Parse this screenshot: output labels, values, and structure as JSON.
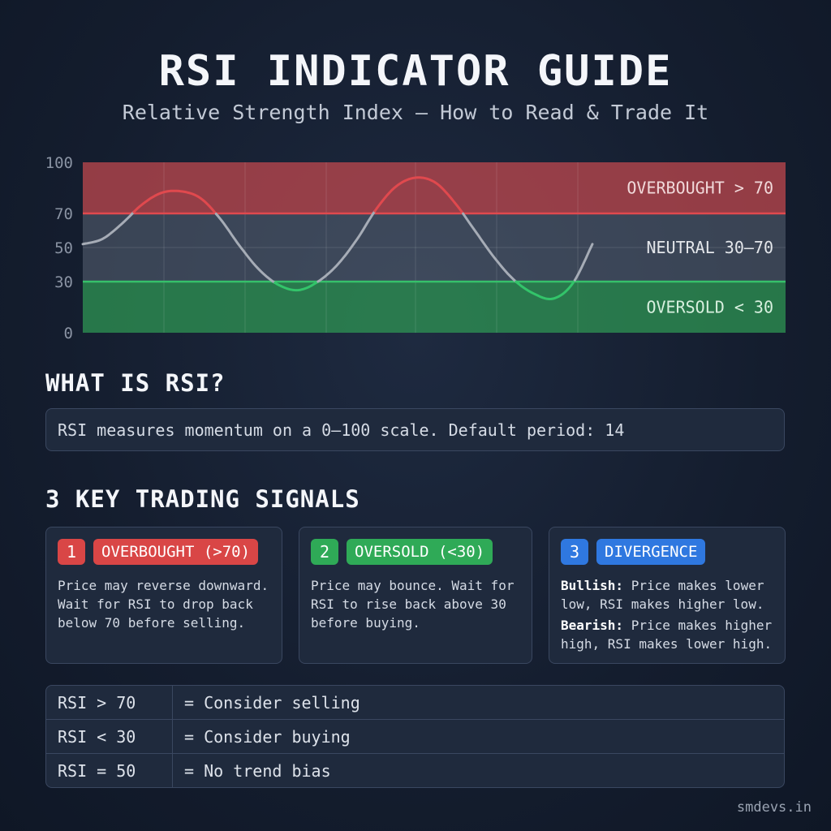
{
  "header": {
    "title": "RSI INDICATOR GUIDE",
    "subtitle": "Relative Strength Index — How to Read & Trade It"
  },
  "chart_data": {
    "type": "line",
    "title": "",
    "xlabel": "",
    "ylabel": "",
    "ylim": [
      0,
      100
    ],
    "y_ticks": [
      100,
      70,
      50,
      30,
      0
    ],
    "grid": true,
    "x": [
      0,
      1,
      2,
      3,
      4,
      5,
      6,
      7,
      8,
      9,
      10,
      11,
      12,
      13,
      14,
      15,
      16,
      17,
      18,
      19,
      20,
      21,
      22,
      23,
      24,
      25,
      26
    ],
    "series": [
      {
        "values": [
          52,
          55,
          64,
          75,
          82,
          83,
          79,
          67,
          51,
          37,
          28,
          25,
          30,
          40,
          55,
          73,
          86,
          91,
          88,
          76,
          60,
          44,
          31,
          23,
          20,
          29,
          52
        ]
      }
    ],
    "zones": [
      {
        "label": "OVERBOUGHT > 70",
        "from": 70,
        "to": 100,
        "color": "#c64a4f"
      },
      {
        "label": "NEUTRAL 30–70",
        "from": 30,
        "to": 70,
        "color": "#5a6474"
      },
      {
        "label": "OVERSOLD < 30",
        "from": 0,
        "to": 30,
        "color": "#2f9a55"
      }
    ],
    "colors": {
      "line_overbought": "#e0494e",
      "line_neutral": "#a6acb6",
      "line_oversold": "#33c46a",
      "threshold_70": "#e0494e",
      "threshold_30": "#36c06a"
    }
  },
  "what_is": {
    "heading": "WHAT IS RSI?",
    "text": "RSI measures momentum on a 0–100 scale. Default period: 14"
  },
  "signals": {
    "heading": "3 KEY TRADING SIGNALS",
    "cards": [
      {
        "number": "1",
        "tag": "OVERBOUGHT (>70)",
        "color": "#d94646",
        "text": "Price may reverse downward. Wait for RSI to drop back below 70 before selling."
      },
      {
        "number": "2",
        "tag": "OVERSOLD (<30)",
        "color": "#2faa57",
        "text": "Price may bounce. Wait for RSI to rise back above 30 before buying."
      },
      {
        "number": "3",
        "tag": "DIVERGENCE",
        "color": "#2f78e0",
        "bullish_label": "Bullish:",
        "bullish_text": "Price makes lower low, RSI makes higher low.",
        "bearish_label": "Bearish:",
        "bearish_text": "Price makes higher high, RSI makes lower high."
      }
    ]
  },
  "rules": [
    {
      "condition": "RSI > 70",
      "action": "= Consider selling"
    },
    {
      "condition": "RSI < 30",
      "action": "= Consider buying"
    },
    {
      "condition": "RSI = 50",
      "action": "= No trend bias"
    }
  ],
  "footer": {
    "site": "smdevs.in"
  }
}
